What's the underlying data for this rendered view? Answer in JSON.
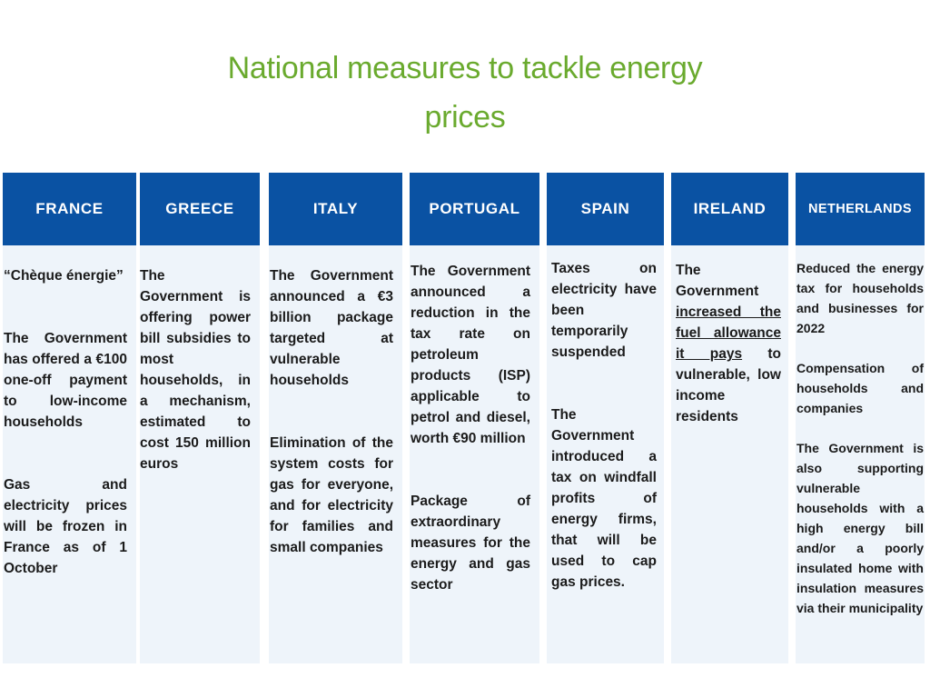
{
  "title": "National measures to tackle energy prices",
  "columns": [
    {
      "country": "FRANCE",
      "paragraphs": [
        "“Chèque énergie”",
        "The Government has offered a €100 one-off payment to low-income households",
        "Gas and electricity prices will be frozen in France as of 1 October"
      ]
    },
    {
      "country": "GREECE",
      "paragraphs": [
        "The Government is offering power bill subsidies to most households, in a mechanism, estimated to cost 150 million euros"
      ]
    },
    {
      "country": "ITALY",
      "paragraphs": [
        "The Government announced a €3 billion package targeted at vulnerable households",
        "Elimination of the system costs for gas for everyone, and for electricity for families and small companies"
      ]
    },
    {
      "country": "PORTUGAL",
      "paragraphs": [
        "The Government announced a reduction in the tax rate on petroleum products (ISP) applicable to petrol and diesel, worth €90 million",
        "Package of extraordinary measures for the energy and gas sector"
      ]
    },
    {
      "country": "SPAIN",
      "paragraphs": [
        "Taxes on electricity have been temporarily suspended",
        "The Government introduced a tax on windfall profits of energy firms, that will be used to cap gas prices."
      ]
    },
    {
      "country": "IRELAND",
      "paragraphs": [
        {
          "before": "The Government ",
          "underlined": "increased the fuel allowance it pays",
          "after": " to vulnerable, low income residents"
        }
      ]
    },
    {
      "country": "NETHERLANDS",
      "paragraphs": [
        "Reduced the energy tax for households and businesses for 2022",
        "Compensation of households and companies",
        "The Government is also supporting vulnerable households with a high energy bill and/or a poorly insulated home with insulation measures via their municipality"
      ]
    }
  ]
}
